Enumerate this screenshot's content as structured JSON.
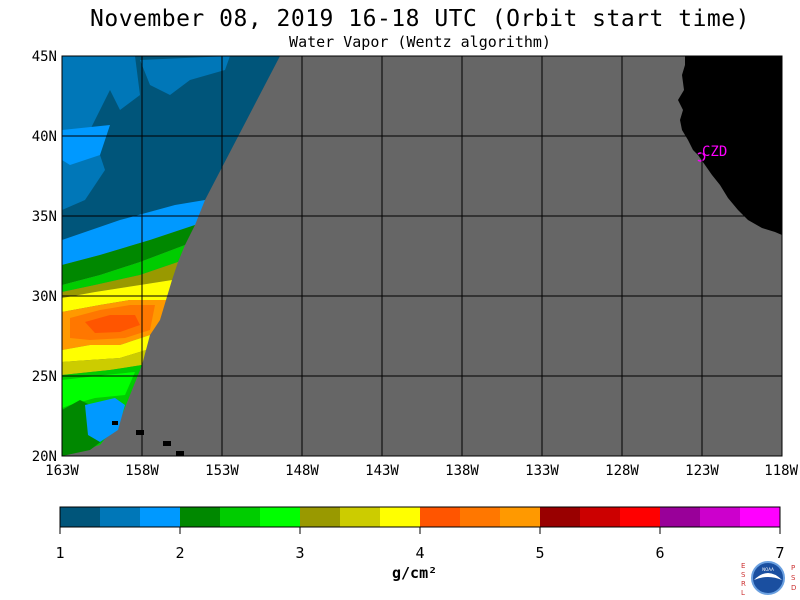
{
  "header": {
    "title": "November 08, 2019  16-18 UTC  (Orbit start time)",
    "subtitle": "Water Vapor (Wentz algorithm)"
  },
  "map": {
    "lat_labels": [
      "45N",
      "40N",
      "35N",
      "30N",
      "25N",
      "20N"
    ],
    "lon_labels": [
      "163W",
      "158W",
      "153W",
      "148W",
      "143W",
      "138W",
      "133W",
      "128W",
      "123W",
      "118W"
    ],
    "station_label": "CZD",
    "colors": {
      "no_data": "#666666",
      "land": "#000000",
      "grid": "#000000",
      "station": "#ff00ff"
    }
  },
  "colorbar": {
    "ticks": [
      "1",
      "2",
      "3",
      "4",
      "5",
      "6",
      "7"
    ],
    "units": "g/cm²",
    "colors": [
      "#00557a",
      "#0077b8",
      "#0099ff",
      "#008800",
      "#00cc00",
      "#00ff00",
      "#999900",
      "#cccc00",
      "#ffff00",
      "#ff5500",
      "#ff7700",
      "#ff9900",
      "#990000",
      "#cc0000",
      "#ff0000",
      "#990099",
      "#cc00cc",
      "#ff00ff"
    ]
  },
  "logo": {
    "left_letters": [
      "E",
      "S",
      "R",
      "L"
    ],
    "right_letters": [
      "P",
      "S",
      "D"
    ],
    "center_text": "NOAA"
  }
}
